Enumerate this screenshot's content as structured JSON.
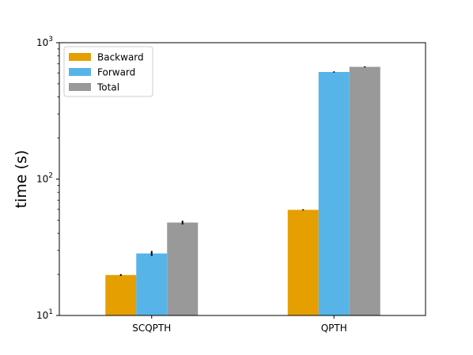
{
  "chart_data": {
    "type": "bar",
    "categories": [
      "SCQPTH",
      "QPTH"
    ],
    "series": [
      {
        "name": "Backward",
        "values": [
          19.8,
          59.5
        ],
        "errors": [
          0.3,
          0.6
        ],
        "color": "#e69f00"
      },
      {
        "name": "Forward",
        "values": [
          28.5,
          610
        ],
        "errors": [
          1.2,
          6
        ],
        "color": "#56b4e9"
      },
      {
        "name": "Total",
        "values": [
          48,
          665
        ],
        "errors": [
          1.5,
          6
        ],
        "color": "#999999"
      }
    ],
    "title": "",
    "xlabel": "",
    "ylabel": "time (s)",
    "yscale": "log",
    "ylim": [
      10,
      1000
    ],
    "yticks": [
      {
        "value": 10,
        "base": "10",
        "exp": "1"
      },
      {
        "value": 100,
        "base": "10",
        "exp": "2"
      },
      {
        "value": 1000,
        "base": "10",
        "exp": "3"
      }
    ],
    "legend_position": "top-left",
    "grid": false
  }
}
